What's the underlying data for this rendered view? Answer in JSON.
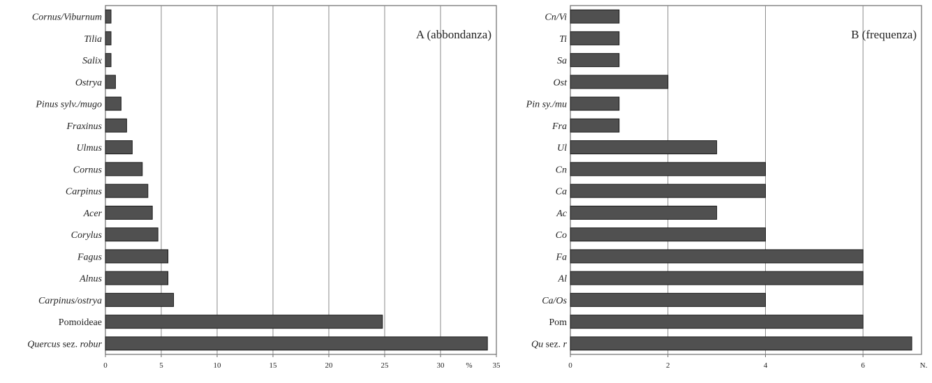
{
  "colors": {
    "bar": "#505050",
    "bar_edge": "#1a1a1a",
    "grid": "#8a8a8a",
    "frame": "#6a6a6a"
  },
  "chart_data": [
    {
      "type": "bar",
      "orientation": "horizontal",
      "title": "A (abbondanza)",
      "unit_label": "%",
      "categories": [
        "Cornus/Viburnum",
        "Tilia",
        "Salix",
        "Ostrya",
        "Pinus sylv./mugo",
        "Fraxinus",
        "Ulmus",
        "Cornus",
        "Carpinus",
        "Acer",
        "Corylus",
        "Fagus",
        "Alnus",
        "Carpinus/ostrya",
        "Pomoideae",
        "Quercus sez. robur"
      ],
      "category_parts": [
        [
          [
            "Cornus/Viburnum",
            true
          ]
        ],
        [
          [
            "Tilia",
            true
          ]
        ],
        [
          [
            "Salix",
            true
          ]
        ],
        [
          [
            "Ostrya",
            true
          ]
        ],
        [
          [
            "Pinus sylv./mugo",
            true
          ]
        ],
        [
          [
            "Fraxinus",
            true
          ]
        ],
        [
          [
            "Ulmus",
            true
          ]
        ],
        [
          [
            "Cornus",
            true
          ]
        ],
        [
          [
            "Carpinus",
            true
          ]
        ],
        [
          [
            "Acer",
            true
          ]
        ],
        [
          [
            "Corylus",
            true
          ]
        ],
        [
          [
            "Fagus",
            true
          ]
        ],
        [
          [
            "Alnus",
            true
          ]
        ],
        [
          [
            "Carpinus/ostrya",
            true
          ]
        ],
        [
          [
            "Pomoideae",
            false
          ]
        ],
        [
          [
            "Quercus",
            true
          ],
          [
            " sez. ",
            false
          ],
          [
            "robur",
            true
          ]
        ]
      ],
      "values": [
        0.5,
        0.5,
        0.5,
        0.9,
        1.4,
        1.9,
        2.4,
        3.3,
        3.8,
        4.2,
        4.7,
        5.6,
        5.6,
        6.1,
        24.8,
        34.2
      ],
      "xlim": [
        0,
        35
      ],
      "xticks": [
        0,
        5,
        10,
        15,
        20,
        25,
        30,
        35
      ],
      "grid": true
    },
    {
      "type": "bar",
      "orientation": "horizontal",
      "title": "B (frequenza)",
      "unit_label": "N.",
      "categories": [
        "Cn/Vi",
        "Ti",
        "Sa",
        "Ost",
        "Pin sy./mu",
        "Fra",
        "Ul",
        "Cn",
        "Ca",
        "Ac",
        "Co",
        "Fa",
        "Al",
        "Ca/Os",
        "Pom",
        "Qu sez. r"
      ],
      "category_parts": [
        [
          [
            "Cn/Vi",
            true
          ]
        ],
        [
          [
            "Ti",
            true
          ]
        ],
        [
          [
            "Sa",
            true
          ]
        ],
        [
          [
            "Ost",
            true
          ]
        ],
        [
          [
            "Pin sy./mu",
            true
          ]
        ],
        [
          [
            "Fra",
            true
          ]
        ],
        [
          [
            "Ul",
            true
          ]
        ],
        [
          [
            "Cn",
            true
          ]
        ],
        [
          [
            "Ca",
            true
          ]
        ],
        [
          [
            "Ac",
            true
          ]
        ],
        [
          [
            "Co",
            true
          ]
        ],
        [
          [
            "Fa",
            true
          ]
        ],
        [
          [
            "Al",
            true
          ]
        ],
        [
          [
            "Ca/Os",
            true
          ]
        ],
        [
          [
            "Pom",
            false
          ]
        ],
        [
          [
            "Qu",
            true
          ],
          [
            " sez. ",
            false
          ],
          [
            "r",
            true
          ]
        ]
      ],
      "values": [
        1,
        1,
        1,
        2,
        1,
        1,
        3,
        4,
        4,
        3,
        4,
        6,
        6,
        4,
        6,
        7
      ],
      "xlim": [
        0,
        7.2
      ],
      "xticks": [
        0,
        2,
        4,
        6
      ],
      "grid": true
    }
  ]
}
